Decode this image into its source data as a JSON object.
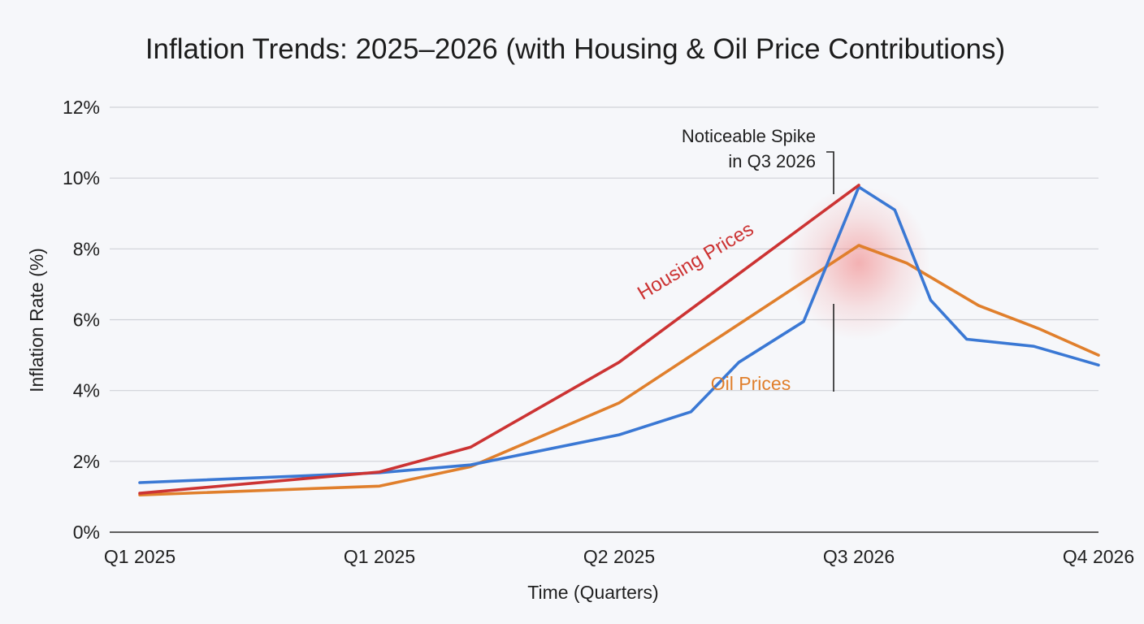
{
  "chart_data": {
    "type": "line",
    "title": "Inflation Trends: 2025–2026 (with Housing & Oil Price Contributions)",
    "xlabel": "Time (Quarters)",
    "ylabel": "Inflation Rate (%)",
    "x_tick_labels": [
      {
        "x": 0,
        "label": "Q1 2025"
      },
      {
        "x": 1,
        "label": "Q1 2025"
      },
      {
        "x": 2,
        "label": "Q2 2025"
      },
      {
        "x": 3,
        "label": "Q3 2026"
      },
      {
        "x": 4,
        "label": "Q4 2026"
      }
    ],
    "xlim": [
      0,
      4
    ],
    "ylim": [
      0,
      12
    ],
    "y_ticks": [
      0,
      2,
      4,
      6,
      8,
      10,
      12
    ],
    "y_tick_labels": [
      "0%",
      "2%",
      "4%",
      "6%",
      "8%",
      "10%",
      "12%"
    ],
    "grid": true,
    "series": [
      {
        "name": "Housing Prices",
        "color": "#cc3333",
        "points": [
          [
            0,
            1.1
          ],
          [
            1,
            1.7
          ],
          [
            1.38,
            2.4
          ],
          [
            2,
            4.8
          ],
          [
            3,
            9.8
          ]
        ]
      },
      {
        "name": "Oil Prices",
        "color": "#e07f2c",
        "points": [
          [
            0,
            1.05
          ],
          [
            1,
            1.3
          ],
          [
            1.38,
            1.85
          ],
          [
            2,
            3.65
          ],
          [
            3,
            8.1
          ],
          [
            3.2,
            7.6
          ],
          [
            3.5,
            6.4
          ],
          [
            3.75,
            5.75
          ],
          [
            4,
            5.0
          ]
        ]
      },
      {
        "name": "",
        "color": "#3a78d4",
        "points": [
          [
            0,
            1.4
          ],
          [
            1,
            1.68
          ],
          [
            1.38,
            1.9
          ],
          [
            2,
            2.75
          ],
          [
            2.3,
            3.4
          ],
          [
            2.5,
            4.8
          ],
          [
            2.77,
            5.95
          ],
          [
            3,
            9.75
          ],
          [
            3.15,
            9.1
          ],
          [
            3.3,
            6.55
          ],
          [
            3.45,
            5.45
          ],
          [
            3.73,
            5.25
          ],
          [
            4,
            4.72
          ]
        ]
      }
    ],
    "annotations": {
      "spike_line1": "Noticeable Spike",
      "spike_line2": "in Q3 2026",
      "spike_x": 3,
      "housing_label": "Housing Prices",
      "oil_label": "Oil Prices"
    },
    "colors": {
      "housing": "#cc3333",
      "oil": "#e07f2c",
      "cpi": "#3a78d4",
      "highlight": "#f06a6a"
    }
  }
}
